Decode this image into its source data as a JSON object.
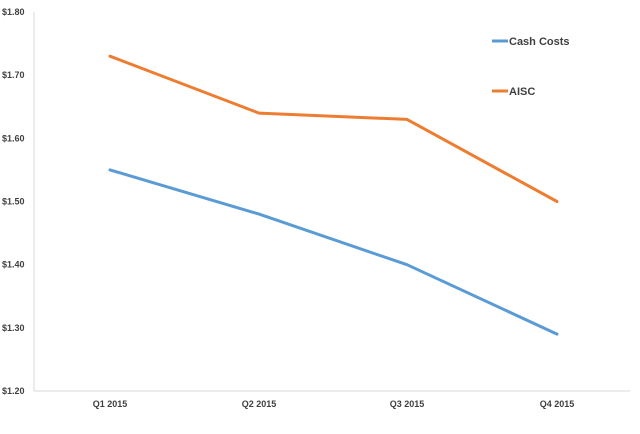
{
  "chart_data": {
    "type": "line",
    "title": "",
    "xlabel": "",
    "ylabel": "",
    "categories": [
      "Q1 2015",
      "Q2 2015",
      "Q3 2015",
      "Q4 2015"
    ],
    "ylim": [
      1.2,
      1.8
    ],
    "yticks": [
      "$1.20",
      "$1.30",
      "$1.40",
      "$1.50",
      "$1.60",
      "$1.70",
      "$1.80"
    ],
    "grid": false,
    "legend_position": "top-right",
    "series": [
      {
        "name": "Cash Costs",
        "color": "#5B9BD5",
        "values": [
          1.55,
          1.48,
          1.4,
          1.29
        ]
      },
      {
        "name": "AISC",
        "color": "#ED7D31",
        "values": [
          1.73,
          1.64,
          1.63,
          1.5
        ]
      }
    ]
  }
}
